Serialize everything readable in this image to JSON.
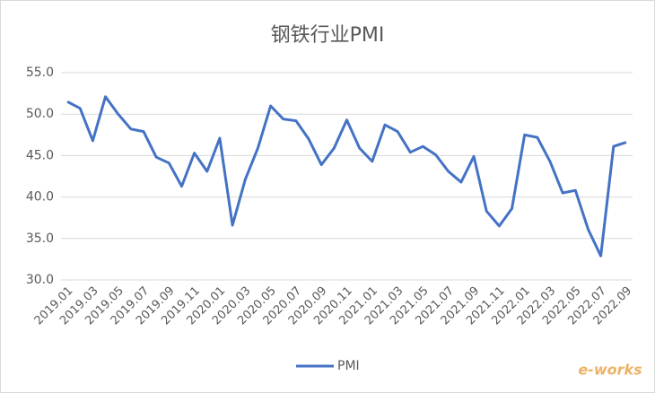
{
  "chart_data": {
    "type": "line",
    "title": "钢铁行业PMI",
    "categories": [
      "2019.01",
      null,
      "2019.03",
      null,
      "2019.05",
      null,
      "2019.07",
      null,
      "2019.09",
      null,
      "2019.11",
      null,
      "2020.01",
      null,
      "2020.03",
      null,
      "2020.05",
      null,
      "2020.07",
      null,
      "2020.09",
      null,
      "2020.11",
      null,
      "2021.01",
      null,
      "2021.03",
      null,
      "2021.05",
      null,
      "2021.07",
      null,
      "2021.09",
      null,
      "2021.11",
      null,
      "2022.01",
      null,
      "2022.03",
      null,
      "2022.05",
      null,
      "2022.07",
      null,
      "2022.09"
    ],
    "series": [
      {
        "name": "PMI",
        "color": "#4472c4",
        "values": [
          51.5,
          50.7,
          46.8,
          52.1,
          50.0,
          48.2,
          47.9,
          44.8,
          44.1,
          41.3,
          45.3,
          43.1,
          47.1,
          36.6,
          42.1,
          45.9,
          51.0,
          49.4,
          49.2,
          47.0,
          43.9,
          45.9,
          49.3,
          45.9,
          44.3,
          48.7,
          47.9,
          45.4,
          46.1,
          45.1,
          43.1,
          41.8,
          44.9,
          38.3,
          36.5,
          38.6,
          47.5,
          47.2,
          44.3,
          40.5,
          40.8,
          36.1,
          32.9,
          46.1,
          46.6
        ]
      }
    ],
    "ylim": [
      30,
      55
    ],
    "yticks": [
      {
        "value": 30,
        "label": "30.0"
      },
      {
        "value": 35,
        "label": "35.0"
      },
      {
        "value": 40,
        "label": "40.0"
      },
      {
        "value": 45,
        "label": "45.0"
      },
      {
        "value": 50,
        "label": "50.0"
      },
      {
        "value": 55,
        "label": "55.0"
      }
    ],
    "grid": true,
    "legend": "bottom",
    "watermark": "e-works"
  }
}
